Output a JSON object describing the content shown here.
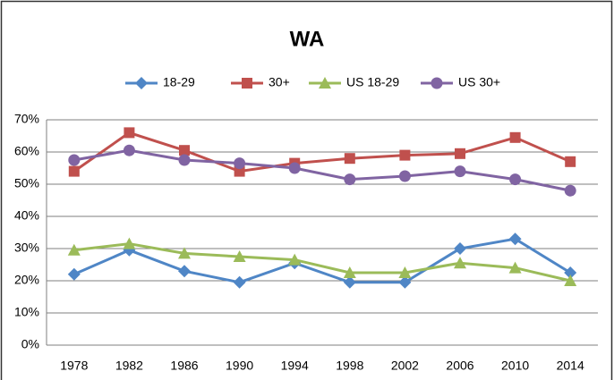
{
  "chart_data": {
    "type": "line",
    "title": "WA",
    "categories": [
      "1978",
      "1982",
      "1986",
      "1990",
      "1994",
      "1998",
      "2002",
      "2006",
      "2010",
      "2014"
    ],
    "series": [
      {
        "name": "18-29",
        "color": "#4f86c6",
        "values": [
          22,
          29.5,
          23,
          19.5,
          25.5,
          19.5,
          19.5,
          30,
          33,
          22.5
        ]
      },
      {
        "name": "30+",
        "color": "#c0504d",
        "values": [
          54,
          66,
          60.5,
          54,
          56.5,
          58,
          59,
          59.5,
          64.5,
          57
        ]
      },
      {
        "name": "US 18-29",
        "color": "#9bbb59",
        "values": [
          29.5,
          31.5,
          28.5,
          27.5,
          26.5,
          22.5,
          22.5,
          25.5,
          24,
          20
        ]
      },
      {
        "name": "US 30+",
        "color": "#8064a2",
        "values": [
          57.5,
          60.5,
          57.5,
          56.5,
          55,
          51.5,
          52.5,
          54,
          51.5,
          48
        ]
      }
    ],
    "ylim": [
      0,
      70
    ],
    "yticks": [
      {
        "value": 0,
        "label": "0%"
      },
      {
        "value": 10,
        "label": "10%"
      },
      {
        "value": 20,
        "label": "20%"
      },
      {
        "value": 30,
        "label": "30%"
      },
      {
        "value": 40,
        "label": "40%"
      },
      {
        "value": 50,
        "label": "50%"
      },
      {
        "value": 60,
        "label": "60%"
      },
      {
        "value": 70,
        "label": "70%"
      }
    ],
    "grid": true,
    "legend": "top"
  }
}
